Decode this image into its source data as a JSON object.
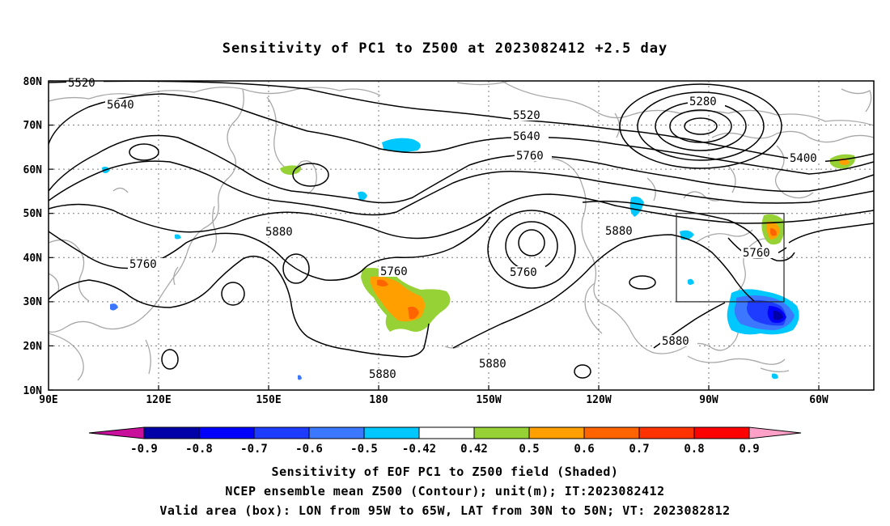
{
  "title": "Sensitivity of PC1 to Z500 at 2023082412 +2.5 day",
  "lat_labels": [
    "80N",
    "70N",
    "60N",
    "50N",
    "40N",
    "30N",
    "20N",
    "10N"
  ],
  "lon_labels": [
    "90E",
    "120E",
    "150E",
    "180",
    "150W",
    "120W",
    "90W",
    "60W"
  ],
  "contour_labels": [
    {
      "text": "5520"
    },
    {
      "text": "5640"
    },
    {
      "text": "5520"
    },
    {
      "text": "5640"
    },
    {
      "text": "5760"
    },
    {
      "text": "5280"
    },
    {
      "text": "5400"
    },
    {
      "text": "5880"
    },
    {
      "text": "5760"
    },
    {
      "text": "5760"
    },
    {
      "text": "5760"
    },
    {
      "text": "5880"
    },
    {
      "text": "5760"
    },
    {
      "text": "5880"
    },
    {
      "text": "5880"
    },
    {
      "text": "5880"
    }
  ],
  "colorbar": {
    "colors": [
      "#0000a8",
      "#0000ff",
      "#1e3cff",
      "#3c78ff",
      "#00c8ff",
      "#ffffff",
      "#96d235",
      "#ffa000",
      "#ff6400",
      "#ff3200",
      "#ff0000"
    ],
    "left_extend": "#c8109a",
    "right_extend": "#ffa0c8",
    "labels": [
      "-0.9",
      "-0.8",
      "-0.7",
      "-0.6",
      "-0.5",
      "-0.42",
      "0.42",
      "0.5",
      "0.6",
      "0.7",
      "0.8",
      "0.9"
    ]
  },
  "captions": [
    "Sensitivity of EOF PC1 to Z500 field (Shaded)",
    "NCEP ensemble mean Z500 (Contour); unit(m); IT:2023082412",
    "Valid area (box): LON from 95W to 65W, LAT from 30N to 50N; VT: 2023082812"
  ]
}
